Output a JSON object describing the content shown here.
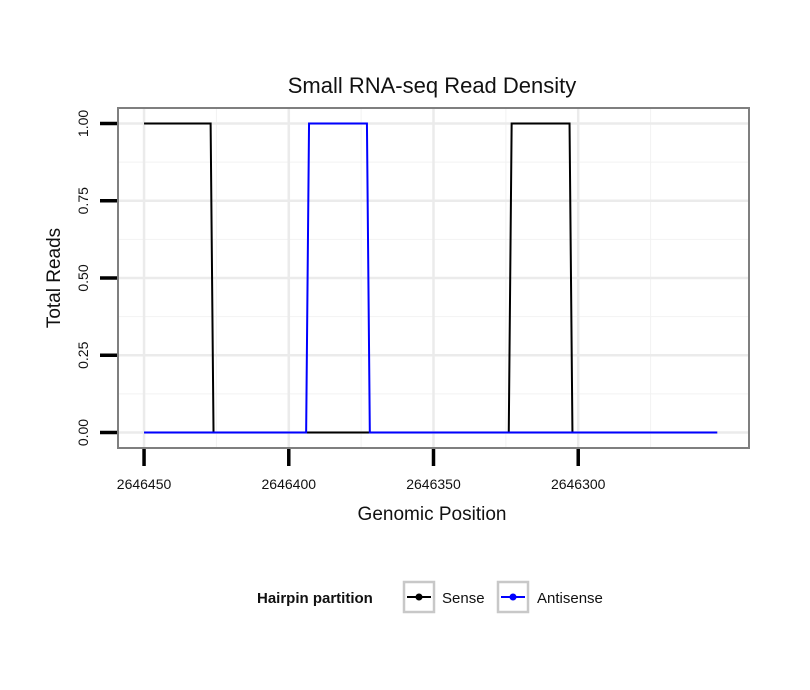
{
  "chart_data": {
    "type": "line",
    "title": "Small RNA-seq Read Density",
    "xlabel": "Genomic Position",
    "ylabel": "Total Reads",
    "x_reversed": true,
    "xlim": [
      2646459,
      2646241
    ],
    "ylim": [
      -0.05,
      1.05
    ],
    "x_ticks": [
      2646450,
      2646400,
      2646350,
      2646300
    ],
    "x_tick_labels": [
      "2646450",
      "2646400",
      "2646350",
      "2646300"
    ],
    "y_ticks": [
      0,
      0.25,
      0.5,
      0.75,
      1
    ],
    "y_tick_labels": [
      "0.00",
      "0.25",
      "0.50",
      "0.75",
      "1.00"
    ],
    "grid": true,
    "legend": {
      "title": "Hairpin partition",
      "position": "bottom"
    },
    "series": [
      {
        "name": "Sense",
        "color": "#000000",
        "x": [
          2646450,
          2646427,
          2646426,
          2646324,
          2646323,
          2646303,
          2646302,
          2646252
        ],
        "y": [
          1,
          1,
          0,
          0,
          1,
          1,
          0,
          0
        ]
      },
      {
        "name": "Antisense",
        "color": "#0000ff",
        "x": [
          2646450,
          2646394,
          2646393,
          2646373,
          2646372,
          2646252
        ],
        "y": [
          0,
          0,
          1,
          1,
          0,
          0
        ]
      }
    ]
  }
}
